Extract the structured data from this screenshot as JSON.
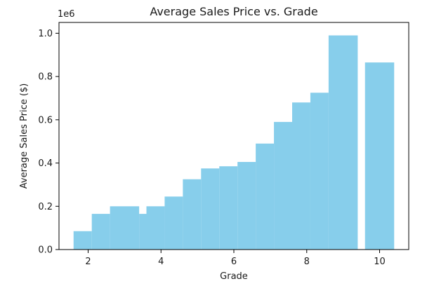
{
  "chart_data": {
    "type": "bar",
    "title": "Average Sales Price vs. Grade",
    "xlabel": "Grade",
    "ylabel": "Average Sales Price ($)",
    "y_offset_label": "1e6",
    "xlim": [
      1.2,
      10.8
    ],
    "ylim": [
      0,
      1050000
    ],
    "x_ticks": [
      2,
      4,
      6,
      8,
      10
    ],
    "y_ticks": [
      0,
      200000,
      400000,
      600000,
      800000,
      1000000
    ],
    "y_tick_labels": [
      "0.0",
      "0.2",
      "0.4",
      "0.6",
      "0.8",
      "1.0"
    ],
    "grid": false,
    "bar_color": "#87ceeb",
    "bars": [
      {
        "x": 1.6,
        "x_end": 2.1,
        "value": 85000
      },
      {
        "x": 2.1,
        "x_end": 2.6,
        "value": 165000
      },
      {
        "x": 2.6,
        "x_end": 3.4,
        "value": 200000
      },
      {
        "x": 3.4,
        "x_end": 3.6,
        "value": 165000
      },
      {
        "x": 3.6,
        "x_end": 4.1,
        "value": 200000
      },
      {
        "x": 4.1,
        "x_end": 4.6,
        "value": 245000
      },
      {
        "x": 4.6,
        "x_end": 5.1,
        "value": 325000
      },
      {
        "x": 5.1,
        "x_end": 5.6,
        "value": 375000
      },
      {
        "x": 5.6,
        "x_end": 6.1,
        "value": 385000
      },
      {
        "x": 6.1,
        "x_end": 6.6,
        "value": 405000
      },
      {
        "x": 6.6,
        "x_end": 7.1,
        "value": 490000
      },
      {
        "x": 7.1,
        "x_end": 7.6,
        "value": 590000
      },
      {
        "x": 7.6,
        "x_end": 8.1,
        "value": 680000
      },
      {
        "x": 8.1,
        "x_end": 8.6,
        "value": 725000
      },
      {
        "x": 8.6,
        "x_end": 9.4,
        "value": 990000
      },
      {
        "x": 9.6,
        "x_end": 10.4,
        "value": 865000
      }
    ]
  }
}
